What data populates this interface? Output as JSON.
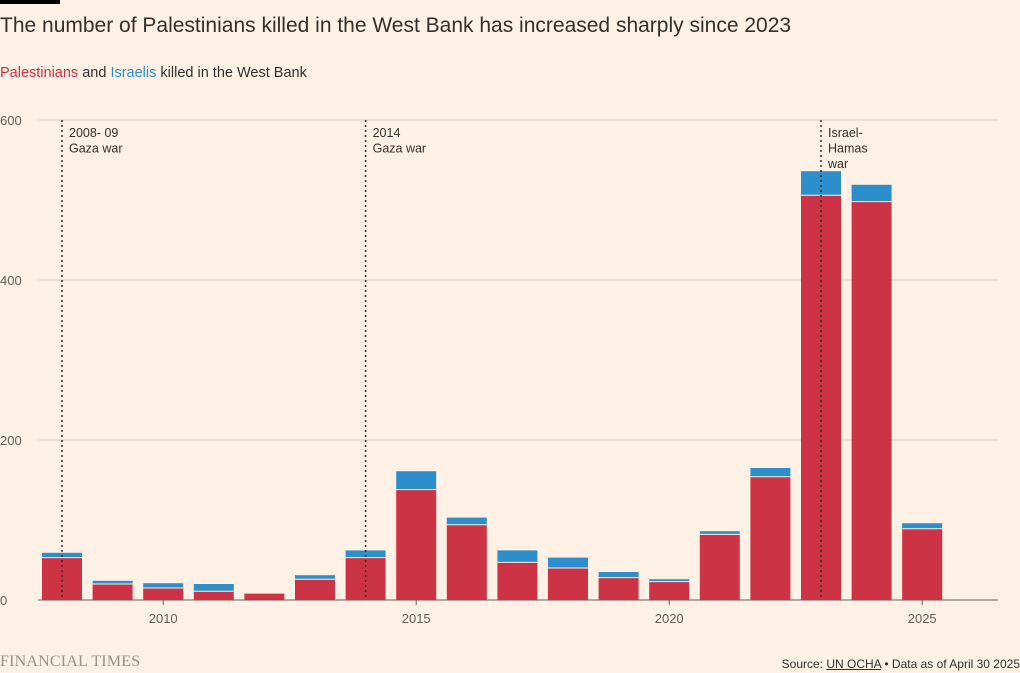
{
  "header": {
    "title": "The number of Palestinians killed in the West Bank has increased sharply since 2023",
    "subtitle_pal": "Palestinians",
    "subtitle_and": " and ",
    "subtitle_isr": "Israelis",
    "subtitle_rest": " killed in the West Bank"
  },
  "footer": {
    "brand": "FINANCIAL TIMES",
    "source_label": "Source: ",
    "source_link": "UN OCHA",
    "source_note": " • Data as of April 30 2025"
  },
  "colors": {
    "palestinians": "#cc3344",
    "israelis": "#2c8fcc",
    "grid": "#d9ccc1",
    "axis": "#66605c"
  },
  "chart_data": {
    "type": "bar",
    "stacked": true,
    "title": "The number of Palestinians killed in the West Bank has increased sharply since 2023",
    "subtitle": "Palestinians and Israelis killed in the West Bank",
    "x": [
      2008,
      2009,
      2010,
      2011,
      2012,
      2013,
      2014,
      2015,
      2016,
      2017,
      2018,
      2019,
      2020,
      2021,
      2022,
      2023,
      2024,
      2025
    ],
    "series": [
      {
        "name": "Palestinians",
        "values": [
          53,
          20,
          15,
          11,
          8,
          26,
          53,
          138,
          94,
          47,
          40,
          28,
          23,
          82,
          154,
          506,
          498,
          89
        ]
      },
      {
        "name": "Israelis",
        "values": [
          6,
          4,
          6,
          9,
          0,
          5,
          9,
          23,
          9,
          15,
          13,
          7,
          3,
          4,
          11,
          30,
          21,
          7
        ]
      }
    ],
    "yticks": [
      0,
      200,
      400,
      600
    ],
    "ytick_labels": [
      "0",
      "200",
      "400",
      "600"
    ],
    "xticks": [
      2010,
      2015,
      2020,
      2025
    ],
    "xtick_labels": [
      "2010",
      "2015",
      "2020",
      "2025"
    ],
    "ylim": [
      0,
      600
    ],
    "grid": true,
    "annotations": [
      {
        "x": 2008,
        "lines": [
          "2008- 09",
          "Gaza war"
        ]
      },
      {
        "x": 2014,
        "lines": [
          "2014",
          "Gaza war"
        ]
      },
      {
        "x": 2023,
        "lines": [
          "Israel-",
          "Hamas",
          "war"
        ]
      }
    ]
  }
}
